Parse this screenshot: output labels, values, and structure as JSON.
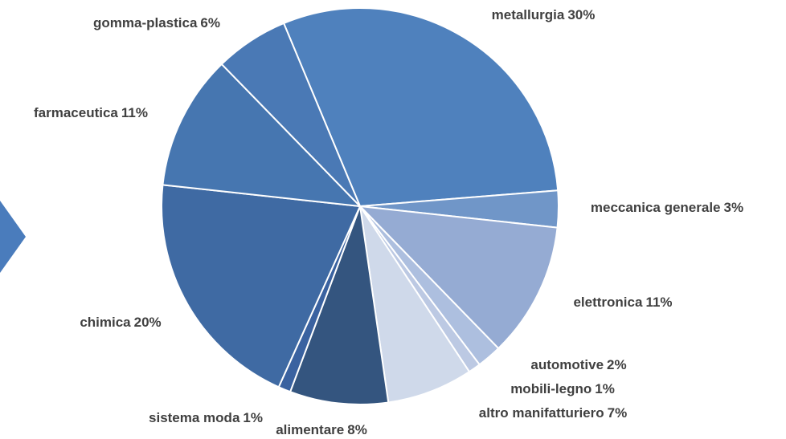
{
  "chart_data": {
    "type": "pie",
    "categories": [
      "metallurgia",
      "meccanica generale",
      "elettronica",
      "automotive",
      "mobili-legno",
      "altro manifatturiero",
      "alimentare",
      "sistema moda",
      "chimica",
      "farmaceutica",
      "gomma-plastica"
    ],
    "values": [
      30,
      3,
      11,
      2,
      1,
      7,
      8,
      1,
      20,
      11,
      6
    ],
    "value_labels": [
      "30%",
      "3%",
      "11%",
      "2%",
      "1%",
      "7%",
      "8%",
      "1%",
      "20%",
      "11%",
      "6%"
    ],
    "colors": [
      "#4f81bd",
      "#7096c8",
      "#95abd3",
      "#adbfdf",
      "#bcc9e3",
      "#cfd9ea",
      "#34557f",
      "#3a62a0",
      "#3f6aa3",
      "#4676b0",
      "#4a79b5"
    ]
  }
}
